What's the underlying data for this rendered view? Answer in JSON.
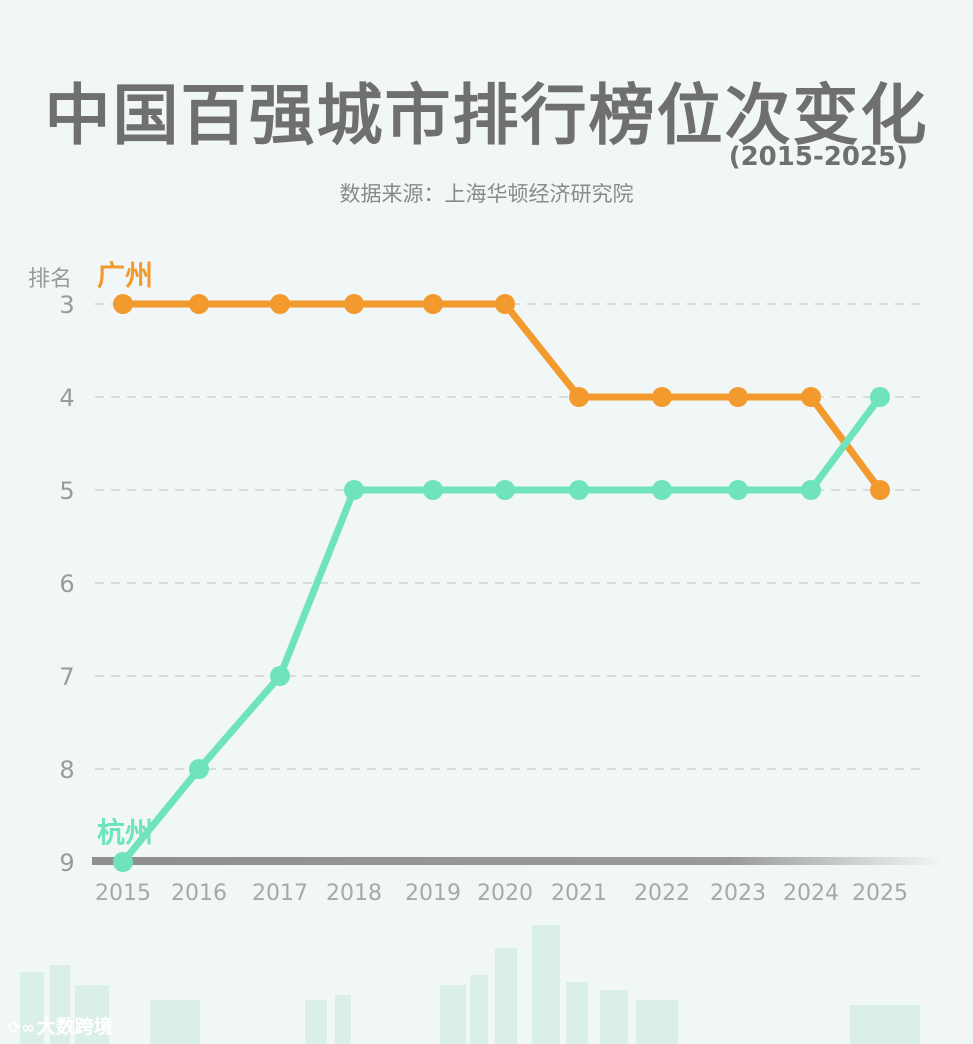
{
  "title": "中国百强城市排行榜位次变化",
  "subtitle": "(2015-2025)",
  "source": "数据来源：上海华顿经济研究院",
  "watermark": "大数跨境",
  "colors": {
    "guangzhou": "#f29a2e",
    "hangzhou": "#6ee3be",
    "axis": "#a8a8a8",
    "grid": "#d6dcdb"
  },
  "chart_data": {
    "type": "line",
    "ylabel": "排名",
    "x": [
      "2015",
      "2016",
      "2017",
      "2018",
      "2019",
      "2020",
      "2021",
      "2022",
      "2023",
      "2024",
      "2025"
    ],
    "y_ticks": [
      3,
      4,
      5,
      6,
      7,
      8,
      9
    ],
    "ylim": [
      3,
      9
    ],
    "y_inverted": true,
    "grid": true,
    "series": [
      {
        "name": "广州",
        "values": [
          3,
          3,
          3,
          3,
          3,
          3,
          4,
          4,
          4,
          4,
          5
        ]
      },
      {
        "name": "杭州",
        "values": [
          9,
          8,
          7,
          5,
          5,
          5,
          5,
          5,
          5,
          5,
          4
        ]
      }
    ]
  }
}
